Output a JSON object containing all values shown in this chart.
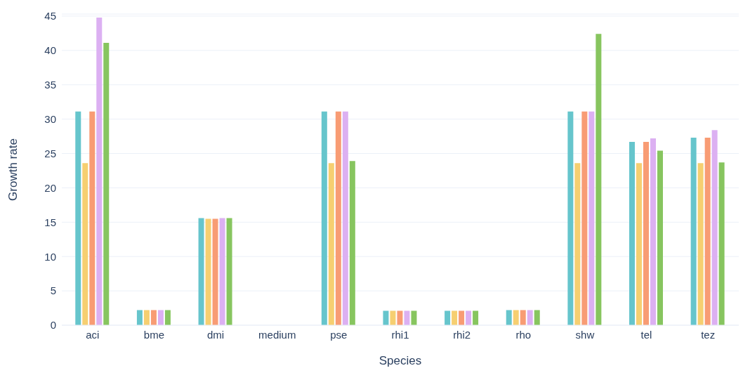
{
  "chart_data": {
    "type": "bar",
    "xlabel": "Species",
    "ylabel": "Growth rate",
    "categories": [
      "aci",
      "bme",
      "dmi",
      "medium",
      "pse",
      "rhi1",
      "rhi2",
      "rho",
      "shw",
      "tel",
      "tez"
    ],
    "series": [
      {
        "color": "#66c5cc",
        "values": [
          31.1,
          2.2,
          15.6,
          0,
          31.1,
          2.1,
          2.1,
          2.2,
          31.1,
          26.7,
          27.3
        ]
      },
      {
        "color": "#f6cf71",
        "values": [
          23.6,
          2.2,
          15.5,
          0,
          23.6,
          2.1,
          2.1,
          2.2,
          23.6,
          23.6,
          23.6
        ]
      },
      {
        "color": "#f89c74",
        "values": [
          31.1,
          2.2,
          15.5,
          0,
          31.1,
          2.1,
          2.1,
          2.2,
          31.1,
          26.7,
          27.3
        ]
      },
      {
        "color": "#dcb0f2",
        "values": [
          44.8,
          2.2,
          15.6,
          0,
          31.1,
          2.1,
          2.1,
          2.2,
          31.1,
          27.2,
          28.4
        ]
      },
      {
        "color": "#87c55f",
        "values": [
          41.1,
          2.2,
          15.6,
          0,
          23.9,
          2.1,
          2.1,
          2.2,
          42.4,
          25.4,
          23.7
        ]
      }
    ],
    "ylim": [
      0,
      45.3
    ],
    "yticks": [
      0,
      5,
      10,
      15,
      20,
      25,
      30,
      35,
      40,
      45
    ],
    "grid": "y",
    "legend": false
  }
}
